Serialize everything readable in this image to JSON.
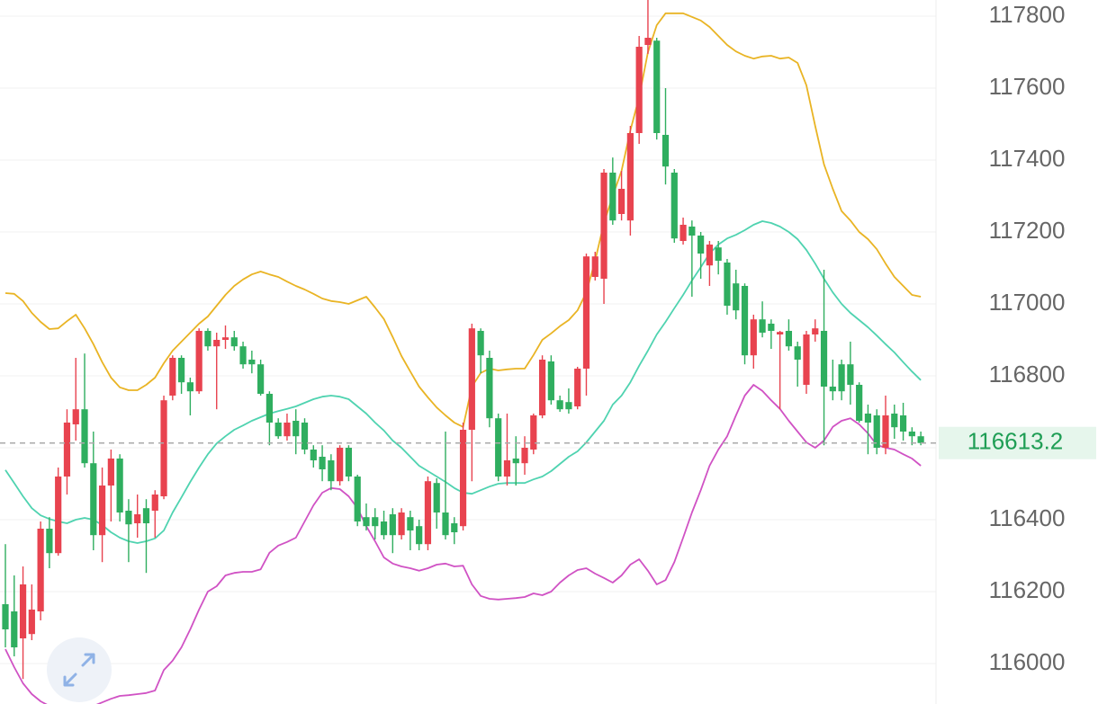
{
  "chart_data": {
    "type": "candlestick",
    "ylim": [
      115887.5,
      117845
    ],
    "yticks": [
      116000,
      116200,
      116400,
      116600,
      116800,
      117000,
      117200,
      117400,
      117600,
      117800
    ],
    "grid": true,
    "up_color": "#e8434f",
    "down_color": "#2fae5f",
    "last_price": 116613.2,
    "open": [
      116165,
      116145,
      116070,
      116082,
      116145,
      116375,
      116307,
      116520,
      116665,
      116707,
      116557,
      116357,
      116495,
      116570,
      116425,
      116390,
      116432,
      116425,
      116465,
      116745,
      116850,
      116782,
      116757,
      116925,
      116882,
      116900,
      116907,
      116882,
      116845,
      116832,
      116750,
      116670,
      116632,
      116675,
      116670,
      116595,
      116575,
      116565,
      116507,
      116600,
      116520,
      116407,
      116407,
      116395,
      116415,
      116357,
      116407,
      116382,
      116332,
      116502,
      116420,
      116390,
      116382,
      116650,
      116925,
      116850,
      116682,
      116520,
      116570,
      116557,
      116595,
      116690,
      116840,
      116732,
      116727,
      116715,
      116820,
      117075,
      117070,
      117365,
      117250,
      117232,
      117475,
      117720,
      117732,
      117470,
      117365,
      117175,
      117215,
      117190,
      117107,
      117157,
      117115,
      117057,
      117050,
      116857,
      116957,
      116945,
      116915,
      116925,
      116882,
      116775,
      116915,
      116925,
      116770,
      116832,
      116832,
      116775,
      116695,
      116690,
      116600,
      116695,
      116690,
      116645,
      116632
    ],
    "high": [
      116332,
      116245,
      116270,
      116220,
      116395,
      116407,
      116545,
      116707,
      116850,
      116862,
      116645,
      116545,
      116595,
      116582,
      116457,
      116470,
      116457,
      116482,
      116745,
      116857,
      116857,
      116795,
      116932,
      116932,
      116920,
      116940,
      116925,
      116895,
      116870,
      116845,
      116757,
      116682,
      116695,
      116707,
      116682,
      116607,
      116607,
      116582,
      116607,
      116607,
      116525,
      116445,
      116432,
      116425,
      116432,
      116432,
      116425,
      116400,
      116520,
      116515,
      116645,
      116407,
      116670,
      116945,
      116932,
      116870,
      116695,
      116695,
      116632,
      116632,
      116695,
      116857,
      116857,
      116745,
      116765,
      116825,
      117140,
      117145,
      117375,
      117407,
      117370,
      117495,
      117745,
      117845,
      117740,
      117600,
      117375,
      117240,
      117232,
      117200,
      117175,
      117175,
      117125,
      117095,
      117057,
      116970,
      117007,
      116957,
      116925,
      116957,
      116895,
      116925,
      116957,
      117095,
      116845,
      116845,
      116895,
      116782,
      116720,
      116707,
      116745,
      116720,
      116725,
      116657,
      116645
    ],
    "low": [
      116045,
      116020,
      115957,
      116065,
      116120,
      116265,
      116300,
      116470,
      116620,
      116545,
      116315,
      116282,
      116395,
      116395,
      116282,
      116350,
      116252,
      116350,
      116457,
      116732,
      116750,
      116690,
      116750,
      116870,
      116707,
      116875,
      116870,
      116820,
      116807,
      116745,
      116607,
      116625,
      116620,
      116582,
      116582,
      116545,
      116507,
      116482,
      116495,
      116507,
      116382,
      116370,
      116345,
      116345,
      116307,
      116345,
      116315,
      116315,
      116315,
      116375,
      116345,
      116332,
      116370,
      116507,
      116807,
      116657,
      116507,
      116495,
      116495,
      116525,
      116582,
      116682,
      116720,
      116700,
      116695,
      116707,
      116745,
      117065,
      117000,
      117220,
      117232,
      117190,
      117445,
      117695,
      117457,
      117332,
      117170,
      117165,
      117020,
      117070,
      117050,
      117082,
      116970,
      116957,
      116832,
      116820,
      116907,
      116875,
      116707,
      116870,
      116770,
      116750,
      116895,
      116607,
      116732,
      116732,
      116720,
      116670,
      116582,
      116582,
      116582,
      116625,
      116620,
      116607,
      116607
    ],
    "close": [
      116095,
      116045,
      116220,
      116150,
      116375,
      116307,
      116520,
      116670,
      116707,
      116557,
      116357,
      116495,
      116570,
      116420,
      116387,
      116415,
      116390,
      116470,
      116732,
      116850,
      116782,
      116757,
      116925,
      116882,
      116900,
      116907,
      116882,
      116832,
      116832,
      116750,
      116670,
      116632,
      116670,
      116632,
      116595,
      116565,
      116540,
      116507,
      116600,
      116520,
      116395,
      116382,
      116382,
      116357,
      116357,
      116420,
      116370,
      116332,
      116507,
      116420,
      116357,
      116365,
      116650,
      116932,
      116857,
      116682,
      116520,
      116565,
      116557,
      116600,
      116690,
      116845,
      116732,
      116707,
      116707,
      116820,
      117132,
      117132,
      117365,
      117232,
      117320,
      117475,
      117715,
      117740,
      117475,
      117382,
      117182,
      117220,
      117190,
      117140,
      117165,
      117120,
      116995,
      116982,
      116857,
      116957,
      116920,
      116925,
      116922,
      116882,
      116845,
      116915,
      116932,
      116770,
      116757,
      116757,
      116775,
      116675,
      116670,
      116600,
      116690,
      116657,
      116645,
      116632,
      116613.2
    ],
    "series": [
      {
        "color": "#e9b424",
        "values": [
          117030,
          117028,
          117008,
          116975,
          116950,
          116930,
          116932,
          116952,
          116970,
          116932,
          116888,
          116838,
          116795,
          116768,
          116760,
          116760,
          116775,
          116795,
          116835,
          116870,
          116895,
          116920,
          116945,
          116965,
          116995,
          117025,
          117050,
          117068,
          117082,
          117090,
          117082,
          117075,
          117062,
          117050,
          117040,
          117028,
          117015,
          117008,
          117005,
          117000,
          117010,
          117020,
          116990,
          116958,
          116908,
          116855,
          116812,
          116770,
          116740,
          116712,
          116690,
          116670,
          116658,
          116770,
          116808,
          116820,
          116815,
          116818,
          116820,
          116820,
          116858,
          116900,
          116918,
          116938,
          116955,
          116982,
          117032,
          117120,
          117225,
          117300,
          117370,
          117482,
          117575,
          117700,
          117775,
          117808,
          117808,
          117808,
          117798,
          117788,
          117770,
          117745,
          117720,
          117702,
          117690,
          117682,
          117688,
          117690,
          117682,
          117685,
          117670,
          117608,
          117495,
          117388,
          117320,
          117258,
          117232,
          117200,
          117180,
          117152,
          117112,
          117075,
          117050,
          117025,
          117020
        ]
      },
      {
        "color": "#4fd3b0",
        "values": [
          116538,
          116502,
          116465,
          116432,
          116412,
          116402,
          116395,
          116390,
          116400,
          116405,
          116400,
          116385,
          116365,
          116350,
          116340,
          116335,
          116340,
          116348,
          116370,
          116420,
          116462,
          116505,
          116545,
          116582,
          116612,
          116632,
          116650,
          116662,
          116675,
          116685,
          116695,
          116702,
          116708,
          116715,
          116725,
          116735,
          116742,
          116745,
          116742,
          116735,
          116715,
          116695,
          116670,
          116648,
          116620,
          116600,
          116575,
          116550,
          116535,
          116520,
          116505,
          116488,
          116475,
          116472,
          116482,
          116492,
          116500,
          116502,
          116502,
          116502,
          116512,
          116520,
          116535,
          116555,
          116575,
          116590,
          116615,
          116645,
          116675,
          116720,
          116745,
          116782,
          116828,
          116870,
          116915,
          116950,
          116988,
          117025,
          117065,
          117102,
          117140,
          117165,
          117182,
          117192,
          117205,
          117220,
          117230,
          117225,
          117215,
          117200,
          117180,
          117150,
          117112,
          117070,
          117032,
          117000,
          116975,
          116955,
          116935,
          116912,
          116888,
          116865,
          116838,
          116812,
          116788
        ]
      },
      {
        "color": "#d052c4",
        "values": [
          116040,
          115990,
          115945,
          115915,
          115895,
          115882,
          115870,
          115870,
          115870,
          115872,
          115882,
          115892,
          115902,
          115910,
          115912,
          115915,
          115918,
          115925,
          115982,
          116008,
          116045,
          116095,
          116150,
          116200,
          116215,
          116245,
          116252,
          116255,
          116255,
          116262,
          116308,
          116328,
          116338,
          116350,
          116395,
          116440,
          116475,
          116488,
          116485,
          116465,
          116432,
          116382,
          116340,
          116295,
          116278,
          116270,
          116265,
          116258,
          116265,
          116275,
          116278,
          116270,
          116272,
          116220,
          116188,
          116180,
          116178,
          116180,
          116182,
          116185,
          116195,
          116190,
          116200,
          116225,
          116245,
          116260,
          116265,
          116250,
          116238,
          116225,
          116245,
          116275,
          116290,
          116258,
          116220,
          116232,
          116282,
          116350,
          116420,
          116482,
          116550,
          116595,
          116632,
          116690,
          116745,
          116775,
          116758,
          116732,
          116708,
          116675,
          116645,
          116615,
          116600,
          116620,
          116658,
          116675,
          116682,
          116665,
          116640,
          116608,
          116600,
          116595,
          116582,
          116570,
          116550
        ]
      }
    ]
  }
}
